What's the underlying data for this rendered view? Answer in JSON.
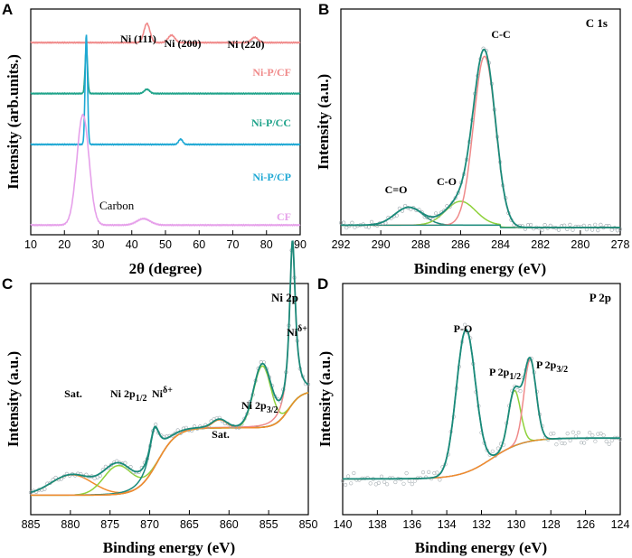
{
  "chart_data": [
    {
      "panel": "A",
      "type": "line",
      "xlabel": "2θ (degree)",
      "ylabel": "Intensity (arb.units.)",
      "xlim": [
        10,
        90
      ],
      "xticks": [
        10,
        20,
        30,
        40,
        50,
        60,
        70,
        80,
        90
      ],
      "annotations": [
        "Ni (111)",
        "Ni (200)",
        "Ni (220)",
        "Carbon"
      ],
      "series": [
        {
          "name": "Ni-P/CF",
          "color": "#f08a8a",
          "baseline": 0.88,
          "peaks": [
            [
              44.5,
              0.09,
              0.9
            ],
            [
              51.8,
              0.035,
              1.0
            ],
            [
              76.5,
              0.025,
              1.0
            ]
          ]
        },
        {
          "name": "Ni-P/CC",
          "color": "#1fa38a",
          "baseline": 0.64,
          "peaks": [
            [
              26.5,
              0.22,
              0.35
            ],
            [
              44.5,
              0.02,
              0.8
            ]
          ]
        },
        {
          "name": "Ni-P/CP",
          "color": "#1ea8d4",
          "baseline": 0.4,
          "peaks": [
            [
              26.5,
              0.52,
              0.35
            ],
            [
              54.5,
              0.025,
              0.6
            ]
          ]
        },
        {
          "name": "CF",
          "color": "#e6a0ea",
          "baseline": 0.02,
          "peaks": [
            [
              25.5,
              0.52,
              1.8
            ],
            [
              43.5,
              0.03,
              2.0
            ]
          ]
        }
      ]
    },
    {
      "panel": "B",
      "type": "line",
      "title": "C 1s",
      "xlabel": "Binding energy (eV)",
      "ylabel": "Intensity (a.u.)",
      "xlim": [
        292,
        278
      ],
      "xticks": [
        292,
        290,
        288,
        286,
        284,
        282,
        280,
        278
      ],
      "components": [
        {
          "name": "C=O",
          "center": 288.6,
          "height": 0.09
        },
        {
          "name": "C-O",
          "center": 286.0,
          "height": 0.12
        },
        {
          "name": "C-C",
          "center": 284.8,
          "height": 1.0
        }
      ]
    },
    {
      "panel": "C",
      "type": "line",
      "title": "Ni 2p",
      "xlabel": "Binding energy (eV)",
      "ylabel": "Intensity (a.u.)",
      "xlim": [
        885,
        850
      ],
      "xticks": [
        885,
        880,
        875,
        870,
        865,
        860,
        855,
        850
      ],
      "annotations": [
        "Sat.",
        "Ni 2p1/2",
        "Niδ+",
        "Sat.",
        "Ni 2p3/2",
        "Niδ+"
      ],
      "components": [
        {
          "name": "Sat.",
          "center": 879.8,
          "height": 0.1
        },
        {
          "name": "Ni 2p1/2",
          "center": 874.0,
          "height": 0.14
        },
        {
          "name": "Niδ+",
          "center": 869.4,
          "height": 0.19
        },
        {
          "name": "Sat.",
          "center": 861.2,
          "height": 0.04
        },
        {
          "name": "Ni 2p3/2",
          "center": 855.8,
          "height": 0.3
        },
        {
          "name": "Niδ+",
          "center": 852.0,
          "height": 0.8
        }
      ]
    },
    {
      "panel": "D",
      "type": "line",
      "title": "P 2p",
      "xlabel": "Binding energy (eV)",
      "ylabel": "Intensity (a.u.)",
      "xlim": [
        140,
        124
      ],
      "xticks": [
        140,
        138,
        136,
        134,
        132,
        130,
        128,
        126,
        124
      ],
      "annotations": [
        "P-O",
        "P 2p1/2",
        "P 2p3/2"
      ],
      "components": [
        {
          "name": "P-O",
          "center": 132.9,
          "height": 0.7
        },
        {
          "name": "P 2p1/2",
          "center": 130.1,
          "height": 0.27
        },
        {
          "name": "P 2p3/2",
          "center": 129.2,
          "height": 0.4
        }
      ]
    }
  ]
}
